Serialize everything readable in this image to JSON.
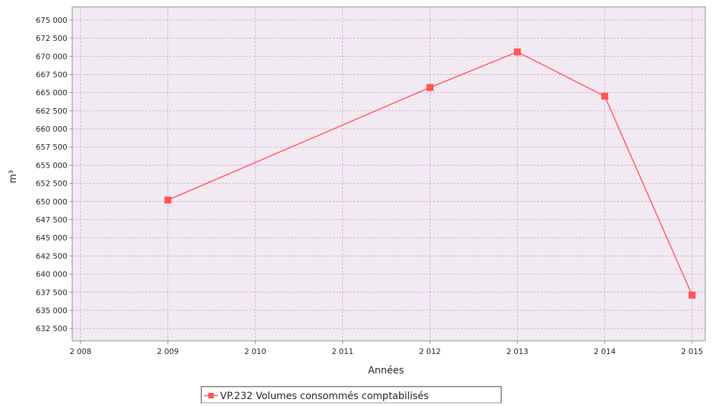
{
  "chart_data": {
    "type": "line",
    "title": "",
    "xlabel": "Années",
    "ylabel": "m³",
    "x": [
      2009,
      2012,
      2013,
      2014,
      2015
    ],
    "series": [
      {
        "name": "VP.232 Volumes consommés comptabilisés",
        "values": [
          650200,
          665700,
          670600,
          664500,
          637100
        ]
      }
    ],
    "xlim": [
      2008,
      2015
    ],
    "ylim": [
      630800,
      676800
    ],
    "x_ticks": [
      2008,
      2009,
      2010,
      2011,
      2012,
      2013,
      2014,
      2015
    ],
    "x_tick_labels": [
      "2 008",
      "2 009",
      "2 010",
      "2 011",
      "2 012",
      "2 013",
      "2 014",
      "2 015"
    ],
    "y_ticks": [
      632500,
      635000,
      637500,
      640000,
      642500,
      645000,
      647500,
      650000,
      652500,
      655000,
      657500,
      660000,
      662500,
      665000,
      667500,
      670000,
      672500,
      675000
    ],
    "y_tick_labels": [
      "632 500",
      "635 000",
      "637 500",
      "640 000",
      "642 500",
      "645 000",
      "647 500",
      "650 000",
      "652 500",
      "655 000",
      "657 500",
      "660 000",
      "662 500",
      "665 000",
      "667 500",
      "670 000",
      "672 500",
      "675 000"
    ],
    "grid": true,
    "legend_position": "bottom-center",
    "colors": {
      "plot_background": "#f2eaf3",
      "grid": "#c79ccf",
      "series": "#ff5555",
      "axis": "#888888"
    }
  }
}
